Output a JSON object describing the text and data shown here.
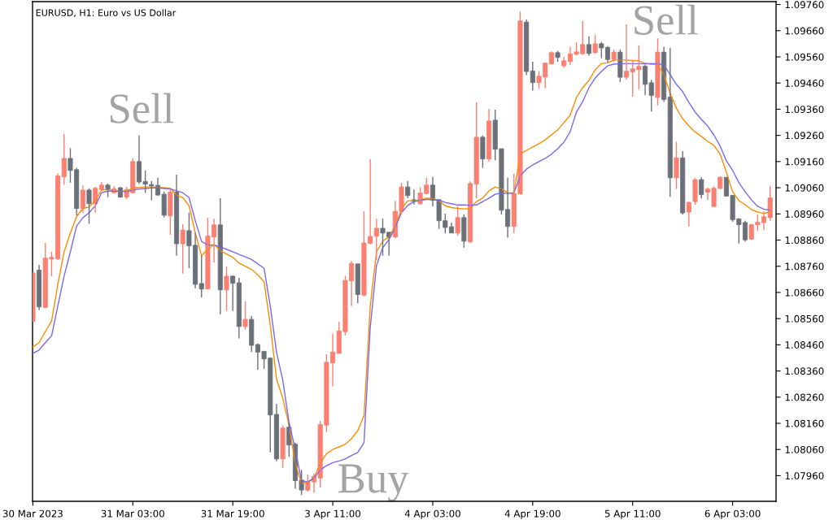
{
  "chart_data": {
    "type": "candlestick",
    "title": "EURUSD, H1: Euro vs US Dollar",
    "categories": [
      "30 Mar 2023",
      null,
      null,
      null,
      null,
      null,
      null,
      null,
      null,
      null,
      null,
      null,
      null,
      null,
      null,
      null,
      "31 Mar 03:00",
      null,
      null,
      null,
      null,
      null,
      null,
      null,
      null,
      null,
      null,
      null,
      null,
      null,
      null,
      null,
      "31 Mar 19:00",
      null,
      null,
      null,
      null,
      null,
      null,
      null,
      null,
      null,
      null,
      null,
      null,
      null,
      null,
      null,
      "3 Apr 11:00",
      null,
      null,
      null,
      null,
      null,
      null,
      null,
      null,
      null,
      null,
      null,
      null,
      null,
      null,
      null,
      "4 Apr 03:00",
      null,
      null,
      null,
      null,
      null,
      null,
      null,
      null,
      null,
      null,
      null,
      null,
      null,
      null,
      null,
      "4 Apr 19:00",
      null,
      null,
      null,
      null,
      null,
      null,
      null,
      null,
      null,
      null,
      null,
      null,
      null,
      null,
      null,
      "5 Apr 11:00",
      null,
      null,
      null,
      null,
      null,
      null,
      null,
      null,
      null,
      null,
      null,
      null,
      null,
      null,
      null,
      "6 Apr 03:00",
      null,
      null,
      null,
      null,
      null,
      null
    ],
    "ohlc": [
      [
        1.08549,
        1.08735,
        1.08549,
        1.08735
      ],
      [
        1.08745,
        1.08765,
        1.08593,
        1.08605
      ],
      [
        1.08603,
        1.08849,
        1.086,
        1.08791
      ],
      [
        1.08788,
        1.08815,
        1.08722,
        1.08794
      ],
      [
        1.08789,
        1.09115,
        1.08784,
        1.09105
      ],
      [
        1.09102,
        1.09265,
        1.09071,
        1.09172
      ],
      [
        1.09172,
        1.09211,
        1.09079,
        1.09126
      ],
      [
        1.09129,
        1.09136,
        1.08955,
        1.08981
      ],
      [
        1.08981,
        1.09069,
        1.08965,
        1.09051
      ],
      [
        1.09051,
        1.09058,
        1.08922,
        1.08999
      ],
      [
        1.08999,
        1.09063,
        1.08965,
        1.09058
      ],
      [
        1.09053,
        1.09082,
        1.09048,
        1.0907
      ],
      [
        1.0907,
        1.09076,
        1.09024,
        1.09053
      ],
      [
        1.09041,
        1.09066,
        1.09038,
        1.09055
      ],
      [
        1.0906,
        1.09063,
        1.09022,
        1.09024
      ],
      [
        1.09024,
        1.09063,
        1.09017,
        1.09053
      ],
      [
        1.09041,
        1.09172,
        1.09038,
        1.0916
      ],
      [
        1.0916,
        1.0926,
        1.09074,
        1.09082
      ],
      [
        1.09084,
        1.09126,
        1.0904,
        1.09074
      ],
      [
        1.09072,
        1.09086,
        1.09012,
        1.09067
      ],
      [
        1.09069,
        1.09098,
        1.0903,
        1.09032
      ],
      [
        1.09035,
        1.09045,
        1.08946,
        1.08955
      ],
      [
        1.08953,
        1.09058,
        1.0888,
        1.09043
      ],
      [
        1.09043,
        1.0911,
        1.088,
        1.08846
      ],
      [
        1.08846,
        1.08921,
        1.08732,
        1.08898
      ],
      [
        1.08896,
        1.08965,
        1.08753,
        1.08838
      ],
      [
        1.0884,
        1.08887,
        1.08675,
        1.08691
      ],
      [
        1.08694,
        1.088,
        1.08641,
        1.08673
      ],
      [
        1.08673,
        1.08945,
        1.08673,
        1.08875
      ],
      [
        1.08872,
        1.08942,
        1.08774,
        1.08918
      ],
      [
        1.08918,
        1.0902,
        1.08577,
        1.0867
      ],
      [
        1.0867,
        1.08759,
        1.08589,
        1.08722
      ],
      [
        1.08722,
        1.08725,
        1.08589,
        1.08695
      ],
      [
        1.08697,
        1.08716,
        1.08484,
        1.0853
      ],
      [
        1.0853,
        1.08626,
        1.08518,
        1.08557
      ],
      [
        1.08557,
        1.0857,
        1.08432,
        1.08458
      ],
      [
        1.08461,
        1.08465,
        1.08365,
        1.08432
      ],
      [
        1.08435,
        1.08435,
        1.08368,
        1.08406
      ],
      [
        1.08409,
        1.08412,
        1.08049,
        1.08192
      ],
      [
        1.08194,
        1.08234,
        1.08015,
        1.08024
      ],
      [
        1.08024,
        1.08153,
        1.0799,
        1.08142
      ],
      [
        1.08145,
        1.08163,
        1.08032,
        1.08077
      ],
      [
        1.0808,
        1.08086,
        1.0791,
        1.07941
      ],
      [
        1.07943,
        1.07982,
        1.07886,
        1.07905
      ],
      [
        1.07905,
        1.07964,
        1.07899,
        1.07936
      ],
      [
        1.07936,
        1.07967,
        1.07894,
        1.07958
      ],
      [
        1.07951,
        1.08169,
        1.07915,
        1.08155
      ],
      [
        1.08153,
        1.08424,
        1.08127,
        1.08393
      ],
      [
        1.08391,
        1.08503,
        1.08301,
        1.08432
      ],
      [
        1.08427,
        1.08548,
        1.08427,
        1.08513
      ],
      [
        1.0851,
        1.08724,
        1.08496,
        1.08706
      ],
      [
        1.08704,
        1.08781,
        1.08608,
        1.08771
      ],
      [
        1.08769,
        1.08769,
        1.08619,
        1.08652
      ],
      [
        1.0865,
        1.0897,
        1.08644,
        1.08849
      ],
      [
        1.08848,
        1.09169,
        1.08844,
        1.08874
      ],
      [
        1.08875,
        1.08942,
        1.08784,
        1.08905
      ],
      [
        1.08905,
        1.08942,
        1.088,
        1.08887
      ],
      [
        1.0889,
        1.0889,
        1.088,
        1.08872
      ],
      [
        1.08872,
        1.0901,
        1.08867,
        1.0897
      ],
      [
        1.0897,
        1.09079,
        1.08958,
        1.09063
      ],
      [
        1.09063,
        1.09086,
        1.0902,
        1.0903
      ],
      [
        1.09014,
        1.09053,
        1.08996,
        1.09008
      ],
      [
        1.08999,
        1.09061,
        1.08996,
        1.0904
      ],
      [
        1.09038,
        1.09098,
        1.09035,
        1.0907
      ],
      [
        1.0907,
        1.09101,
        1.08989,
        1.09012
      ],
      [
        1.09014,
        1.09017,
        1.08903,
        1.08934
      ],
      [
        1.08934,
        1.08961,
        1.08886,
        1.08908
      ],
      [
        1.08911,
        1.08927,
        1.08886,
        1.08887
      ],
      [
        1.08887,
        1.08989,
        1.08877,
        1.08946
      ],
      [
        1.08946,
        1.08958,
        1.08831,
        1.08856
      ],
      [
        1.08853,
        1.09084,
        1.08849,
        1.09076
      ],
      [
        1.09074,
        1.09386,
        1.0902,
        1.09253
      ],
      [
        1.09253,
        1.0926,
        1.09136,
        1.0917
      ],
      [
        1.0917,
        1.09361,
        1.0916,
        1.09315
      ],
      [
        1.09318,
        1.09358,
        1.09165,
        1.09207
      ],
      [
        1.09209,
        1.09209,
        1.08958,
        1.08974
      ],
      [
        1.08977,
        1.09098,
        1.08869,
        1.08912
      ],
      [
        1.08912,
        1.09113,
        1.08886,
        1.09038
      ],
      [
        1.09036,
        1.09734,
        1.09036,
        1.09697
      ],
      [
        1.09693,
        1.09703,
        1.0949,
        1.09504
      ],
      [
        1.09506,
        1.09541,
        1.09431,
        1.09462
      ],
      [
        1.09462,
        1.09506,
        1.09438,
        1.09486
      ],
      [
        1.09483,
        1.09539,
        1.0944,
        1.09536
      ],
      [
        1.09533,
        1.09581,
        1.09531,
        1.09576
      ],
      [
        1.09576,
        1.09583,
        1.09541,
        1.09558
      ],
      [
        1.09526,
        1.0956,
        1.09519,
        1.09545
      ],
      [
        1.09542,
        1.09599,
        1.09529,
        1.09572
      ],
      [
        1.0957,
        1.09615,
        1.09565,
        1.09579
      ],
      [
        1.09572,
        1.09697,
        1.09567,
        1.09607
      ],
      [
        1.09607,
        1.09638,
        1.09564,
        1.09573
      ],
      [
        1.09576,
        1.09645,
        1.09573,
        1.0961
      ],
      [
        1.0961,
        1.09617,
        1.09555,
        1.09594
      ],
      [
        1.09596,
        1.09601,
        1.09539,
        1.0955
      ],
      [
        1.0955,
        1.09588,
        1.09541,
        1.09578
      ],
      [
        1.09578,
        1.09588,
        1.09464,
        1.09482
      ],
      [
        1.09482,
        1.09684,
        1.09472,
        1.09505
      ],
      [
        1.09503,
        1.09548,
        1.09408,
        1.09514
      ],
      [
        1.09511,
        1.09604,
        1.09436,
        1.09524
      ],
      [
        1.09524,
        1.09531,
        1.09413,
        1.09455
      ],
      [
        1.09461,
        1.09472,
        1.09351,
        1.09413
      ],
      [
        1.09405,
        1.09631,
        1.09374,
        1.09578
      ],
      [
        1.09578,
        1.09599,
        1.09388,
        1.09397
      ],
      [
        1.09406,
        1.09594,
        1.09025,
        1.09098
      ],
      [
        1.09098,
        1.09236,
        1.09055,
        1.09174
      ],
      [
        1.09174,
        1.092,
        1.08958,
        1.08964
      ],
      [
        1.08967,
        1.09007,
        1.08912,
        1.09004
      ],
      [
        1.09007,
        1.09098,
        1.08995,
        1.09091
      ],
      [
        1.09091,
        1.091,
        1.09019,
        1.09034
      ],
      [
        1.09043,
        1.09061,
        1.09013,
        1.09055
      ],
      [
        1.08988,
        1.09065,
        1.08988,
        1.09058
      ],
      [
        1.09057,
        1.09103,
        1.09055,
        1.091
      ],
      [
        1.091,
        1.091,
        1.09028,
        1.09028
      ],
      [
        1.09031,
        1.09031,
        1.0893,
        1.08938
      ],
      [
        1.08941,
        1.08944,
        1.08847,
        1.08919
      ],
      [
        1.08927,
        1.08934,
        1.08854,
        1.08861
      ],
      [
        1.08864,
        1.08922,
        1.08861,
        1.08919
      ],
      [
        1.08919,
        1.08958,
        1.08895,
        1.08928
      ],
      [
        1.08927,
        1.0897,
        1.08898,
        1.08949
      ],
      [
        1.08946,
        1.09067,
        1.08934,
        1.09021
      ]
    ],
    "colors": [
      "#fa8072",
      "#6b7079",
      "#fa8072",
      "#fa8072",
      "#fa8072",
      "#fa8072",
      "#6b7079",
      "#6b7079",
      "#fa8072",
      "#6b7079",
      "#fa8072",
      "#fa8072",
      "#6b7079",
      "#fa8072",
      "#6b7079",
      "#fa8072",
      "#fa8072",
      "#6b7079",
      "#6b7079",
      "#6b7079",
      "#6b7079",
      "#6b7079",
      "#fa8072",
      "#6b7079",
      "#fa8072",
      "#6b7079",
      "#6b7079",
      "#6b7079",
      "#fa8072",
      "#fa8072",
      "#6b7079",
      "#fa8072",
      "#6b7079",
      "#6b7079",
      "#fa8072",
      "#6b7079",
      "#6b7079",
      "#6b7079",
      "#6b7079",
      "#6b7079",
      "#fa8072",
      "#6b7079",
      "#6b7079",
      "#6b7079",
      "#fa8072",
      "#fa8072",
      "#fa8072",
      "#fa8072",
      "#fa8072",
      "#fa8072",
      "#fa8072",
      "#fa8072",
      "#6b7079",
      "#fa8072",
      "#fa8072",
      "#fa8072",
      "#6b7079",
      "#6b7079",
      "#fa8072",
      "#fa8072",
      "#6b7079",
      "#6b7079",
      "#fa8072",
      "#fa8072",
      "#6b7079",
      "#6b7079",
      "#6b7079",
      "#6b7079",
      "#fa8072",
      "#6b7079",
      "#fa8072",
      "#fa8072",
      "#6b7079",
      "#fa8072",
      "#6b7079",
      "#6b7079",
      "#6b7079",
      "#fa8072",
      "#fa8072",
      "#6b7079",
      "#6b7079",
      "#fa8072",
      "#fa8072",
      "#fa8072",
      "#6b7079",
      "#fa8072",
      "#fa8072",
      "#fa8072",
      "#fa8072",
      "#6b7079",
      "#fa8072",
      "#6b7079",
      "#6b7079",
      "#fa8072",
      "#6b7079",
      "#fa8072",
      "#fa8072",
      "#fa8072",
      "#6b7079",
      "#6b7079",
      "#fa8072",
      "#6b7079",
      "#6b7079",
      "#fa8072",
      "#6b7079",
      "#fa8072",
      "#fa8072",
      "#6b7079",
      "#fa8072",
      "#fa8072",
      "#fa8072",
      "#6b7079",
      "#6b7079",
      "#6b7079",
      "#6b7079",
      "#fa8072",
      "#fa8072",
      "#fa8072",
      "#fa8072"
    ],
    "series": [
      {
        "type": "line",
        "color": "#ff8c00",
        "values": [
          1.08452,
          1.08468,
          1.0851,
          1.08551,
          1.08691,
          1.08815,
          1.08887,
          1.0895,
          1.08981,
          1.08986,
          1.09012,
          1.09051,
          1.09053,
          1.09051,
          1.09045,
          1.09048,
          1.09058,
          1.09061,
          1.09063,
          1.09063,
          1.09061,
          1.0906,
          1.09058,
          1.09032,
          1.09022,
          1.08991,
          1.08887,
          1.088,
          1.08825,
          1.08843,
          1.0882,
          1.08807,
          1.08794,
          1.08772,
          1.0876,
          1.08748,
          1.08727,
          1.08701,
          1.08536,
          1.08329,
          1.08256,
          1.08153,
          1.08008,
          1.0793,
          1.07934,
          1.07951,
          1.08008,
          1.08044,
          1.0806,
          1.0807,
          1.0808,
          1.08101,
          1.08132,
          1.08189,
          1.08608,
          1.08815,
          1.08856,
          1.08872,
          1.08914,
          1.08979,
          1.0901,
          1.0901,
          1.09012,
          1.0902,
          1.09019,
          1.0901,
          1.08991,
          1.08984,
          1.08981,
          1.08979,
          1.08981,
          1.09007,
          1.0902,
          1.09048,
          1.09063,
          1.09056,
          1.09041,
          1.0904,
          1.09188,
          1.09203,
          1.09216,
          1.09228,
          1.09243,
          1.09262,
          1.09281,
          1.09309,
          1.09337,
          1.09405,
          1.09442,
          1.0947,
          1.0951,
          1.09534,
          1.09538,
          1.09548,
          1.09548,
          1.09548,
          1.09546,
          1.09545,
          1.09535,
          1.09532,
          1.09531,
          1.09492,
          1.0942,
          1.09364,
          1.09324,
          1.09296,
          1.09273,
          1.09256,
          1.09237,
          1.09222,
          1.09188,
          1.09119,
          1.09045,
          1.09011,
          1.08995,
          1.08977,
          1.08967,
          1.08962,
          1.08968
        ]
      },
      {
        "type": "line",
        "color": "#7b68ee",
        "values": [
          1.08427,
          1.0844,
          1.08468,
          1.08494,
          1.08608,
          1.08722,
          1.08815,
          1.08914,
          1.08945,
          1.08965,
          1.08991,
          1.09041,
          1.09047,
          1.09047,
          1.09046,
          1.09045,
          1.09051,
          1.09055,
          1.09057,
          1.09059,
          1.0906,
          1.09057,
          1.09055,
          1.09048,
          1.09041,
          1.09022,
          1.08934,
          1.08855,
          1.08841,
          1.08841,
          1.08834,
          1.08825,
          1.08815,
          1.08805,
          1.08796,
          1.08786,
          1.08769,
          1.08753,
          1.08608,
          1.08432,
          1.08325,
          1.08163,
          1.0806,
          1.07941,
          1.07936,
          1.07951,
          1.07982,
          1.07998,
          1.0801,
          1.08016,
          1.08024,
          1.08037,
          1.08049,
          1.08086,
          1.08526,
          1.08763,
          1.08831,
          1.08862,
          1.08908,
          1.08965,
          1.08992,
          1.09007,
          1.09012,
          1.09015,
          1.09015,
          1.09012,
          1.09004,
          1.08999,
          1.08994,
          1.08994,
          1.08993,
          1.08994,
          1.09007,
          1.0902,
          1.09035,
          1.0904,
          1.09038,
          1.0904,
          1.09105,
          1.09131,
          1.09147,
          1.0916,
          1.09172,
          1.09188,
          1.09209,
          1.09234,
          1.09274,
          1.09349,
          1.09389,
          1.09442,
          1.09479,
          1.09504,
          1.09526,
          1.09532,
          1.09534,
          1.09534,
          1.09534,
          1.09534,
          1.09534,
          1.09534,
          1.09534,
          1.09529,
          1.09492,
          1.09455,
          1.09427,
          1.09386,
          1.09349,
          1.09321,
          1.09296,
          1.09262,
          1.09219,
          1.09163,
          1.09126,
          1.09079,
          1.09045,
          1.09014,
          1.08989,
          1.08978,
          1.08974
        ]
      }
    ],
    "ylim": [
      1.07862,
      1.09771
    ],
    "yticks": [
      {
        "value": 1.0796,
        "label": "1.07960"
      },
      {
        "value": 1.0806,
        "label": "1.08060"
      },
      {
        "value": 1.0816,
        "label": "1.08160"
      },
      {
        "value": 1.0826,
        "label": "1.08260"
      },
      {
        "value": 1.0836,
        "label": "1.08360"
      },
      {
        "value": 1.0846,
        "label": "1.08460"
      },
      {
        "value": 1.0856,
        "label": "1.08560"
      },
      {
        "value": 1.0866,
        "label": "1.08660"
      },
      {
        "value": 1.0876,
        "label": "1.08760"
      },
      {
        "value": 1.0886,
        "label": "1.08860"
      },
      {
        "value": 1.0896,
        "label": "1.08960"
      },
      {
        "value": 1.0906,
        "label": "1.09060"
      },
      {
        "value": 1.0916,
        "label": "1.09160"
      },
      {
        "value": 1.0926,
        "label": "1.09260"
      },
      {
        "value": 1.0936,
        "label": "1.09360"
      },
      {
        "value": 1.0946,
        "label": "1.09460"
      },
      {
        "value": 1.0956,
        "label": "1.09560"
      },
      {
        "value": 1.0966,
        "label": "1.09660"
      },
      {
        "value": 1.0976,
        "label": "1.09760"
      }
    ],
    "annotations": [
      "Sell",
      "Sell",
      "Buy"
    ]
  }
}
